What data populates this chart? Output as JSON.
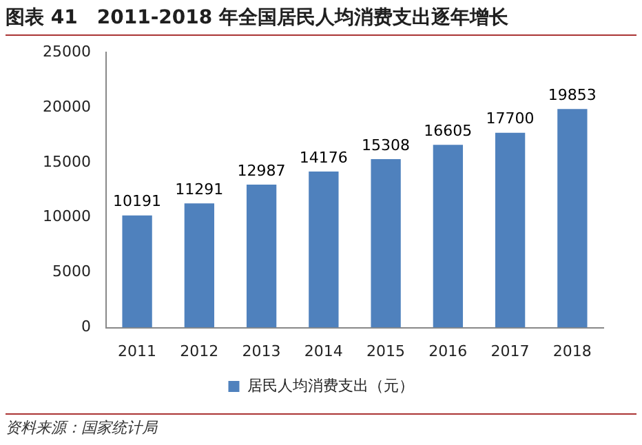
{
  "chart_data": {
    "type": "bar",
    "title": "图表 41　2011-2018 年全国居民人均消费支出逐年增长",
    "categories": [
      "2011",
      "2012",
      "2013",
      "2014",
      "2015",
      "2016",
      "2017",
      "2018"
    ],
    "series": [
      {
        "name": "居民人均消费支出（元）",
        "color": "#4f81bd",
        "values": [
          10191,
          11291,
          12987,
          14176,
          15308,
          16605,
          17700,
          19853
        ]
      }
    ],
    "ylim": [
      0,
      25000
    ],
    "yticks": [
      0,
      5000,
      10000,
      15000,
      20000,
      25000
    ],
    "grid": false,
    "legend": "bottom",
    "data_labels": true,
    "annotations": [
      "资料来源：国家统计局"
    ]
  }
}
